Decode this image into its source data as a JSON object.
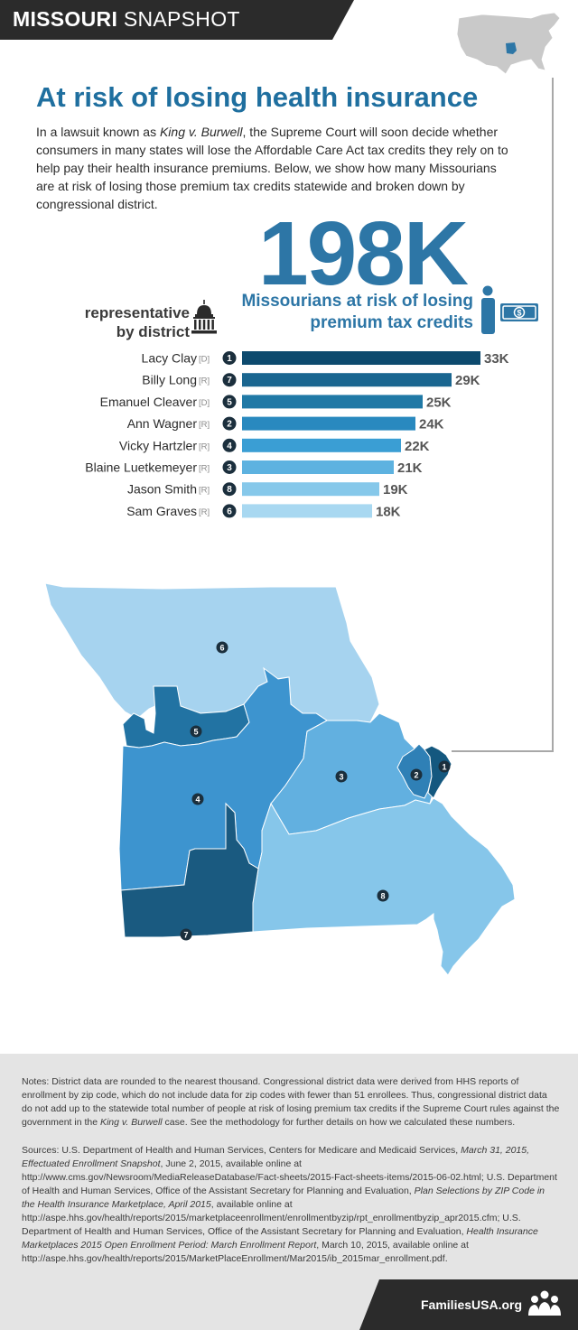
{
  "header": {
    "state_bold": "MISSOURI",
    "state_light": " SNAPSHOT"
  },
  "title": "At risk of losing health insurance",
  "intro": {
    "part1": "In a lawsuit known as ",
    "case_name": "King v. Burwell",
    "part2": ", the Supreme Court will soon decide whether consumers in many states will lose the Affordable Care Act tax credits they rely on to help pay their health insurance premiums. Below, we show how many Missourians are at risk of losing those premium tax credits statewide and broken down by congressional district."
  },
  "statewide": {
    "number": "198K",
    "line1": "Missourians at risk of losing",
    "line2": "premium tax credits"
  },
  "rep_label": {
    "line1": "representative",
    "line2": "by district"
  },
  "chart_data": {
    "type": "bar",
    "orientation": "horizontal",
    "title": "Missourians at risk of losing premium tax credits by congressional district",
    "value_unit": "thousands",
    "categories": [
      "Lacy Clay",
      "Billy Long",
      "Emanuel Cleaver",
      "Ann Wagner",
      "Vicky Hartzler",
      "Blaine Luetkemeyer",
      "Jason Smith",
      "Sam Graves"
    ],
    "parties": [
      "[D]",
      "[R]",
      "[D]",
      "[R]",
      "[R]",
      "[R]",
      "[R]",
      "[R]"
    ],
    "districts": [
      "1",
      "7",
      "5",
      "2",
      "4",
      "3",
      "8",
      "6"
    ],
    "values": [
      33,
      29,
      25,
      24,
      22,
      21,
      19,
      18
    ],
    "value_labels": [
      "33K",
      "29K",
      "25K",
      "24K",
      "22K",
      "21K",
      "19K",
      "18K"
    ],
    "bar_colors": [
      "#0d4a6e",
      "#1a6690",
      "#2079a6",
      "#2989bf",
      "#3a9ed4",
      "#5db2e0",
      "#86c8ea",
      "#a8d8f1"
    ],
    "xlim": [
      0,
      33
    ]
  },
  "map": {
    "district_colors": {
      "1": "#14587f",
      "2": "#2f80b6",
      "3": "#62b0e0",
      "4": "#3d94cf",
      "5": "#2273a3",
      "6": "#a6d3ef",
      "7": "#1a5a80",
      "8": "#86c6ea"
    },
    "district_labels": [
      "6",
      "5",
      "4",
      "3",
      "2",
      "1",
      "8",
      "7"
    ]
  },
  "notes": {
    "p1_a": "Notes: District data are rounded to the nearest thousand. Congressional district data were derived from HHS reports of enrollment by zip code, which do not include data for zip codes with fewer than 51 enrollees. Thus, congressional district data do not add up to the statewide total number of people at risk of losing premium tax credits if the Supreme Court rules against the government in the ",
    "p1_case": "King v. Burwell",
    "p1_b": " case. See the methodology for further details on how we calculated these numbers.",
    "p2_a": "Sources: U.S. Department of Health and Human Services, Centers for Medicare and Medicaid Services, ",
    "p2_i1": "March 31, 2015, Effectuated Enrollment Snapshot",
    "p2_b": ", June 2, 2015, available online at http://www.cms.gov/Newsroom/MediaReleaseDatabase/Fact-sheets/2015-Fact-sheets-items/2015-06-02.html; U.S. Department of Health and Human Services, Office of the Assistant Secretary for Planning and Evaluation, ",
    "p2_i2": "Plan Selections by ZIP Code in the Health Insurance Marketplace, April 2015",
    "p2_c": ", available online at http://aspe.hhs.gov/health/reports/2015/marketplaceenrollment/enrollmentbyzip/rpt_enrollmentbyzip_apr2015.cfm; U.S. Department of Health and Human Services, Office of the Assistant Secretary for Planning and Evaluation, ",
    "p2_i3": "Health Insurance Marketplaces 2015 Open Enrollment Period: March Enrollment Report",
    "p2_d": ", March 10, 2015, available online at http://aspe.hhs.gov/health/reports/2015/MarketPlaceEnrollment/Mar2015/ib_2015mar_enrollment.pdf."
  },
  "footer": {
    "site": "FamiliesUSA.org"
  },
  "colors": {
    "title_blue": "#1f6f9f",
    "accent_blue": "#2d76a6",
    "header_bg": "#2b2b2b",
    "notes_bg": "#e4e4e4"
  }
}
